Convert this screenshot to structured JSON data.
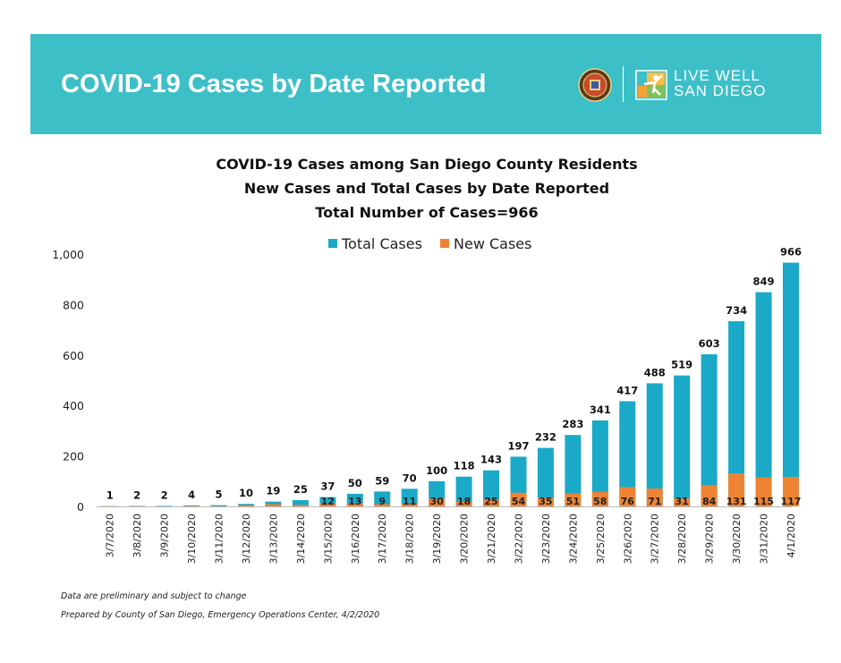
{
  "header": {
    "title": "COVID-19 Cases by Date Reported",
    "logo_line1": "LIVE WELL",
    "logo_line2": "SAN DIEGO",
    "accent_color": "#3dbfc8"
  },
  "chart_data": {
    "type": "bar",
    "title": [
      "COVID-19 Cases among San Diego County Residents",
      "New Cases and Total Cases by Date Reported",
      "Total Number of Cases=966"
    ],
    "legend_position": "top",
    "categories": [
      "3/7/2020",
      "3/8/2020",
      "3/9/2020",
      "3/10/2020",
      "3/11/2020",
      "3/12/2020",
      "3/13/2020",
      "3/14/2020",
      "3/15/2020",
      "3/16/2020",
      "3/17/2020",
      "3/18/2020",
      "3/19/2020",
      "3/20/2020",
      "3/21/2020",
      "3/22/2020",
      "3/23/2020",
      "3/24/2020",
      "3/25/2020",
      "3/26/2020",
      "3/27/2020",
      "3/28/2020",
      "3/29/2020",
      "3/30/2020",
      "3/31/2020",
      "4/1/2020"
    ],
    "series": [
      {
        "name": "Total Cases",
        "color": "#1aa9c6",
        "values": [
          1,
          2,
          2,
          4,
          5,
          10,
          19,
          25,
          37,
          50,
          59,
          70,
          100,
          118,
          143,
          197,
          232,
          283,
          341,
          417,
          488,
          519,
          603,
          734,
          849,
          966
        ]
      },
      {
        "name": "New Cases",
        "color": "#ef8334",
        "values": [
          1,
          1,
          0,
          2,
          1,
          5,
          9,
          6,
          12,
          13,
          9,
          11,
          30,
          18,
          25,
          54,
          35,
          51,
          58,
          76,
          71,
          31,
          84,
          131,
          115,
          117
        ]
      }
    ],
    "new_case_labels_shown_from_index": 8,
    "ylim": [
      0,
      1000
    ],
    "yticks": [
      0,
      200,
      400,
      600,
      800,
      1000
    ],
    "ytick_labels": [
      "0",
      "200",
      "400",
      "600",
      "800",
      "1,000"
    ],
    "grid": false
  },
  "footnotes": [
    "Data are preliminary and subject to change",
    "Prepared by County of San Diego, Emergency Operations Center, 4/2/2020"
  ]
}
